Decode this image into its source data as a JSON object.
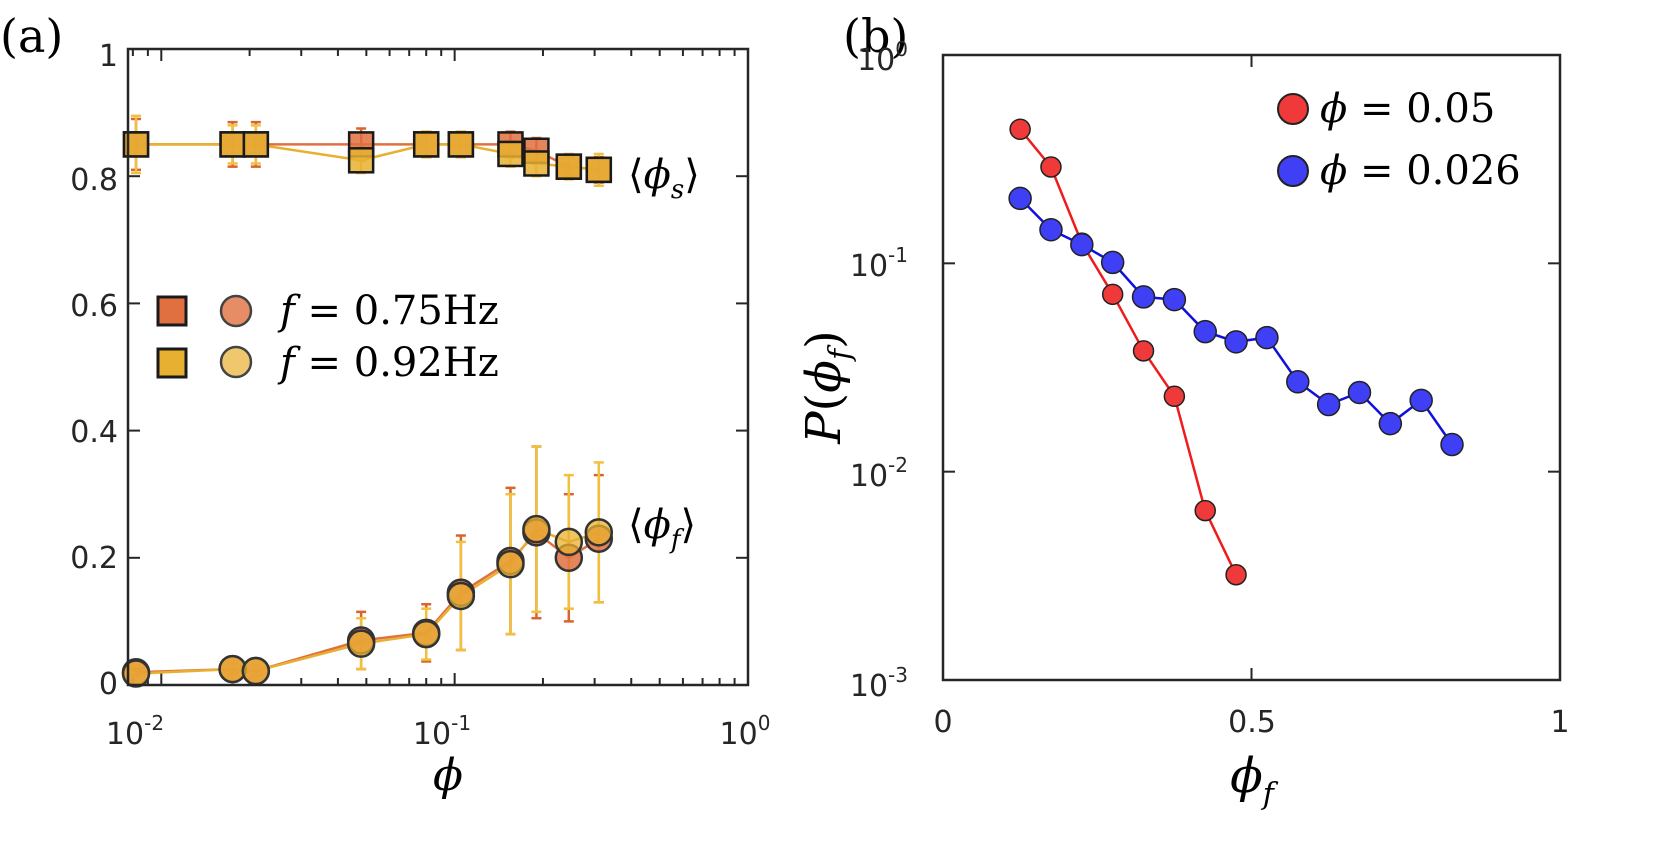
{
  "panel_labels": {
    "a": "(a)",
    "b": "(b)"
  },
  "colors": {
    "f075": "#e07040",
    "f092": "#e8b030",
    "f075_err": "#d9642f",
    "f092_err": "#f0c040",
    "red_series": "#f03a3a",
    "red_line": "#ee1c1c",
    "blue_series": "#3f3ff5",
    "blue_line": "#1010dd",
    "axis": "#262626"
  },
  "panel_a": {
    "xlabel": "ϕ",
    "x_ticks": [
      {
        "mantissa": "10",
        "exp": "-2"
      },
      {
        "mantissa": "10",
        "exp": "-1"
      },
      {
        "mantissa": "10",
        "exp": "0"
      }
    ],
    "y_ticks": [
      "0",
      "0.2",
      "0.4",
      "0.6",
      "0.8",
      "1"
    ],
    "annot_s": {
      "open": "⟨",
      "sym": "ϕ",
      "sub": "s",
      "close": "⟩"
    },
    "annot_f": {
      "open": "⟨",
      "sym": "ϕ",
      "sub": "f",
      "close": "⟩"
    },
    "legend": [
      {
        "prefix": "f",
        "eq": " = 0.75Hz"
      },
      {
        "prefix": "f",
        "eq": " = 0.92Hz"
      }
    ]
  },
  "panel_b": {
    "ylabel_sym": "P",
    "ylabel_inner": "ϕ",
    "ylabel_sub": "f",
    "xlabel_sym": "ϕ",
    "xlabel_sub": "f",
    "x_ticks": [
      "0",
      "0.5",
      "1"
    ],
    "y_ticks": [
      {
        "mantissa": "10",
        "exp": "-3"
      },
      {
        "mantissa": "10",
        "exp": "-2"
      },
      {
        "mantissa": "10",
        "exp": "-1"
      },
      {
        "mantissa": "10",
        "exp": "0"
      }
    ],
    "legend": [
      {
        "sym": "ϕ",
        "eq": " = 0.05"
      },
      {
        "sym": "ϕ",
        "eq": " = 0.026"
      }
    ]
  },
  "chart_data": [
    {
      "type": "scatter",
      "panel": "a",
      "xlabel": "ϕ",
      "x_scale": "log",
      "xlim": [
        0.0077,
        1
      ],
      "ylim": [
        0,
        1
      ],
      "grid": false,
      "legend_position": "center-left",
      "series": [
        {
          "name": "f = 0.75Hz (⟨ϕs⟩)",
          "marker": "square",
          "x": [
            0.0082,
            0.0175,
            0.021,
            0.048,
            0.08,
            0.105,
            0.155,
            0.19,
            0.245,
            0.31
          ],
          "y": [
            0.85,
            0.85,
            0.85,
            0.85,
            0.85,
            0.85,
            0.85,
            0.84,
            0.815,
            0.81
          ],
          "err": [
            0.04,
            0.035,
            0.035,
            0.025,
            0.02,
            0.02,
            0.02,
            0.02,
            0.015,
            0.02
          ]
        },
        {
          "name": "f = 0.92Hz (⟨ϕs⟩)",
          "marker": "square",
          "x": [
            0.0082,
            0.0175,
            0.021,
            0.048,
            0.08,
            0.105,
            0.155,
            0.19,
            0.245,
            0.31
          ],
          "y": [
            0.85,
            0.85,
            0.85,
            0.825,
            0.85,
            0.85,
            0.835,
            0.82,
            0.815,
            0.81
          ],
          "err": [
            0.045,
            0.03,
            0.03,
            0.02,
            0.02,
            0.02,
            0.02,
            0.02,
            0.02,
            0.025
          ]
        },
        {
          "name": "f = 0.75Hz (⟨ϕf⟩)",
          "marker": "circle",
          "x": [
            0.0082,
            0.0175,
            0.021,
            0.048,
            0.08,
            0.105,
            0.155,
            0.19,
            0.245,
            0.31
          ],
          "y": [
            0.02,
            0.025,
            0.022,
            0.07,
            0.082,
            0.145,
            0.195,
            0.24,
            0.2,
            0.23
          ],
          "err": [
            0.005,
            0.008,
            0.008,
            0.045,
            0.045,
            0.09,
            0.115,
            0.135,
            0.1,
            0.1
          ]
        },
        {
          "name": "f = 0.92Hz (⟨ϕf⟩)",
          "marker": "circle",
          "x": [
            0.0082,
            0.0175,
            0.021,
            0.048,
            0.08,
            0.105,
            0.155,
            0.19,
            0.245,
            0.31
          ],
          "y": [
            0.018,
            0.025,
            0.022,
            0.065,
            0.08,
            0.14,
            0.19,
            0.245,
            0.225,
            0.24
          ],
          "err": [
            0.005,
            0.008,
            0.008,
            0.04,
            0.04,
            0.085,
            0.11,
            0.13,
            0.105,
            0.11
          ]
        }
      ]
    },
    {
      "type": "line",
      "panel": "b",
      "xlabel": "ϕf",
      "ylabel": "P(ϕf)",
      "y_scale": "log",
      "xlim": [
        0,
        1
      ],
      "ylim": [
        0.001,
        1
      ],
      "grid": false,
      "legend_position": "top-right",
      "series": [
        {
          "name": "ϕ = 0.05",
          "x": [
            0.125,
            0.175,
            0.225,
            0.275,
            0.325,
            0.375,
            0.425,
            0.475
          ],
          "y": [
            0.44,
            0.29,
            0.125,
            0.071,
            0.038,
            0.023,
            0.0065,
            0.0032
          ]
        },
        {
          "name": "ϕ = 0.026",
          "x": [
            0.125,
            0.175,
            0.225,
            0.275,
            0.325,
            0.375,
            0.425,
            0.475,
            0.525,
            0.575,
            0.625,
            0.675,
            0.725,
            0.775,
            0.825
          ],
          "y": [
            0.205,
            0.145,
            0.123,
            0.101,
            0.069,
            0.067,
            0.047,
            0.042,
            0.044,
            0.027,
            0.021,
            0.024,
            0.017,
            0.022,
            0.0135
          ]
        }
      ]
    }
  ]
}
